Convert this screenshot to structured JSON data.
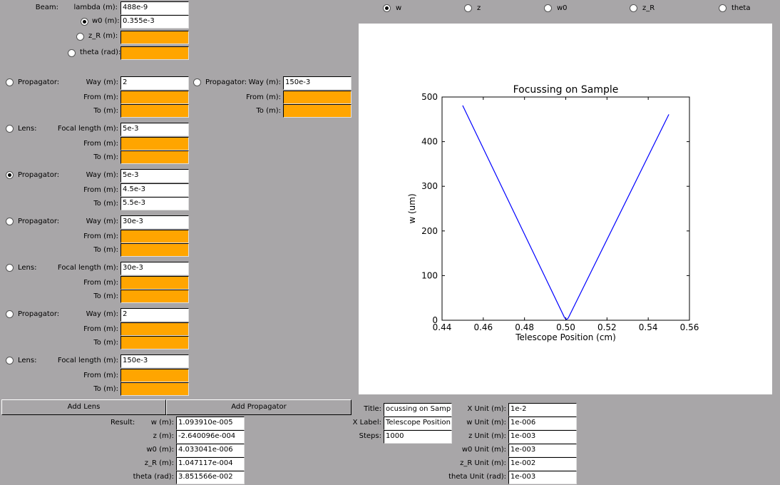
{
  "beam": {
    "label": "Beam:",
    "lambda_label": "lambda (m):",
    "lambda_value": "488e-9",
    "w0_label": "w0 (m):",
    "w0_value": "0.355e-3",
    "w0_selected": true,
    "zr_label": "z_R (m):",
    "zr_value": "",
    "theta_label": "theta (rad):",
    "theta_value": ""
  },
  "propagator_extra": {
    "label": "Propagator:",
    "way_label": "Way (m):",
    "way_value": "150e-3",
    "from_label": "From (m):",
    "from_value": "",
    "to_label": "To (m):",
    "to_value": ""
  },
  "elements": [
    {
      "type_label": "Propagator:",
      "selected": false,
      "p1_label": "Way (m):",
      "p1_value": "2",
      "from_label": "From (m):",
      "from_value": "",
      "to_label": "To (m):",
      "to_value": ""
    },
    {
      "type_label": "Lens:",
      "selected": false,
      "p1_label": "Focal length (m):",
      "p1_value": "5e-3",
      "from_label": "From (m):",
      "from_value": "",
      "to_label": "To (m):",
      "to_value": ""
    },
    {
      "type_label": "Propagator:",
      "selected": true,
      "p1_label": "Way (m):",
      "p1_value": "5e-3",
      "from_label": "From (m):",
      "from_value": "4.5e-3",
      "to_label": "To (m):",
      "to_value": "5.5e-3"
    },
    {
      "type_label": "Propagator:",
      "selected": false,
      "p1_label": "Way (m):",
      "p1_value": "30e-3",
      "from_label": "From (m):",
      "from_value": "",
      "to_label": "To (m):",
      "to_value": ""
    },
    {
      "type_label": "Lens:",
      "selected": false,
      "p1_label": "Focal length (m):",
      "p1_value": "30e-3",
      "from_label": "From (m):",
      "from_value": "",
      "to_label": "To (m):",
      "to_value": ""
    },
    {
      "type_label": "Propagator:",
      "selected": false,
      "p1_label": "Way (m):",
      "p1_value": "2",
      "from_label": "From (m):",
      "from_value": "",
      "to_label": "To (m):",
      "to_value": ""
    },
    {
      "type_label": "Lens:",
      "selected": false,
      "p1_label": "Focal length (m):",
      "p1_value": "150e-3",
      "from_label": "From (m):",
      "from_value": "",
      "to_label": "To (m):",
      "to_value": ""
    }
  ],
  "buttons": {
    "add_lens": "Add Lens",
    "add_propagator": "Add Propagator"
  },
  "plot_selector": {
    "options": [
      "w",
      "z",
      "w0",
      "z_R",
      "theta"
    ],
    "selected": "w"
  },
  "results": {
    "label": "Result:",
    "rows": [
      {
        "label": "w (m):",
        "value": "1.093910e-005"
      },
      {
        "label": "z (m):",
        "value": "-2.640096e-004"
      },
      {
        "label": "w0 (m):",
        "value": "4.033041e-006"
      },
      {
        "label": "z_R (m):",
        "value": "1.047117e-004"
      },
      {
        "label": "theta (rad):",
        "value": "3.851566e-002"
      }
    ]
  },
  "plot_settings": {
    "title_label": "Title:",
    "title_value": "ocussing on Sample",
    "xlabel_label": "X Label:",
    "xlabel_value": "Telescope Position",
    "steps_label": "Steps:",
    "steps_value": "1000"
  },
  "units": [
    {
      "label": "X Unit (m):",
      "value": "1e-2"
    },
    {
      "label": "w Unit (m):",
      "value": "1e-006"
    },
    {
      "label": "z Unit (m):",
      "value": "1e-003"
    },
    {
      "label": "w0 Unit (m):",
      "value": "1e-003"
    },
    {
      "label": "z_R Unit (m):",
      "value": "1e-002"
    },
    {
      "label": "theta Unit (rad):",
      "value": "1e-003"
    }
  ],
  "colors": {
    "empty_field": "#ffa500",
    "line": "#0000ff",
    "background": "#a8a6a8"
  },
  "chart_data": {
    "type": "line",
    "title": "Focussing on Sample",
    "xlabel": "Telescope Position (cm)",
    "ylabel": "w (um)",
    "xlim": [
      0.44,
      0.56
    ],
    "ylim": [
      0,
      500
    ],
    "xticks": [
      "0.44",
      "0.46",
      "0.48",
      "0.50",
      "0.52",
      "0.54",
      "0.56"
    ],
    "yticks": [
      "0",
      "100",
      "200",
      "300",
      "400",
      "500"
    ],
    "grid": false,
    "series": [
      {
        "x": [
          0.45,
          0.4995,
          0.5005,
          0.5012,
          0.55
        ],
        "y": [
          481,
          5,
          2,
          5,
          461
        ]
      }
    ]
  }
}
